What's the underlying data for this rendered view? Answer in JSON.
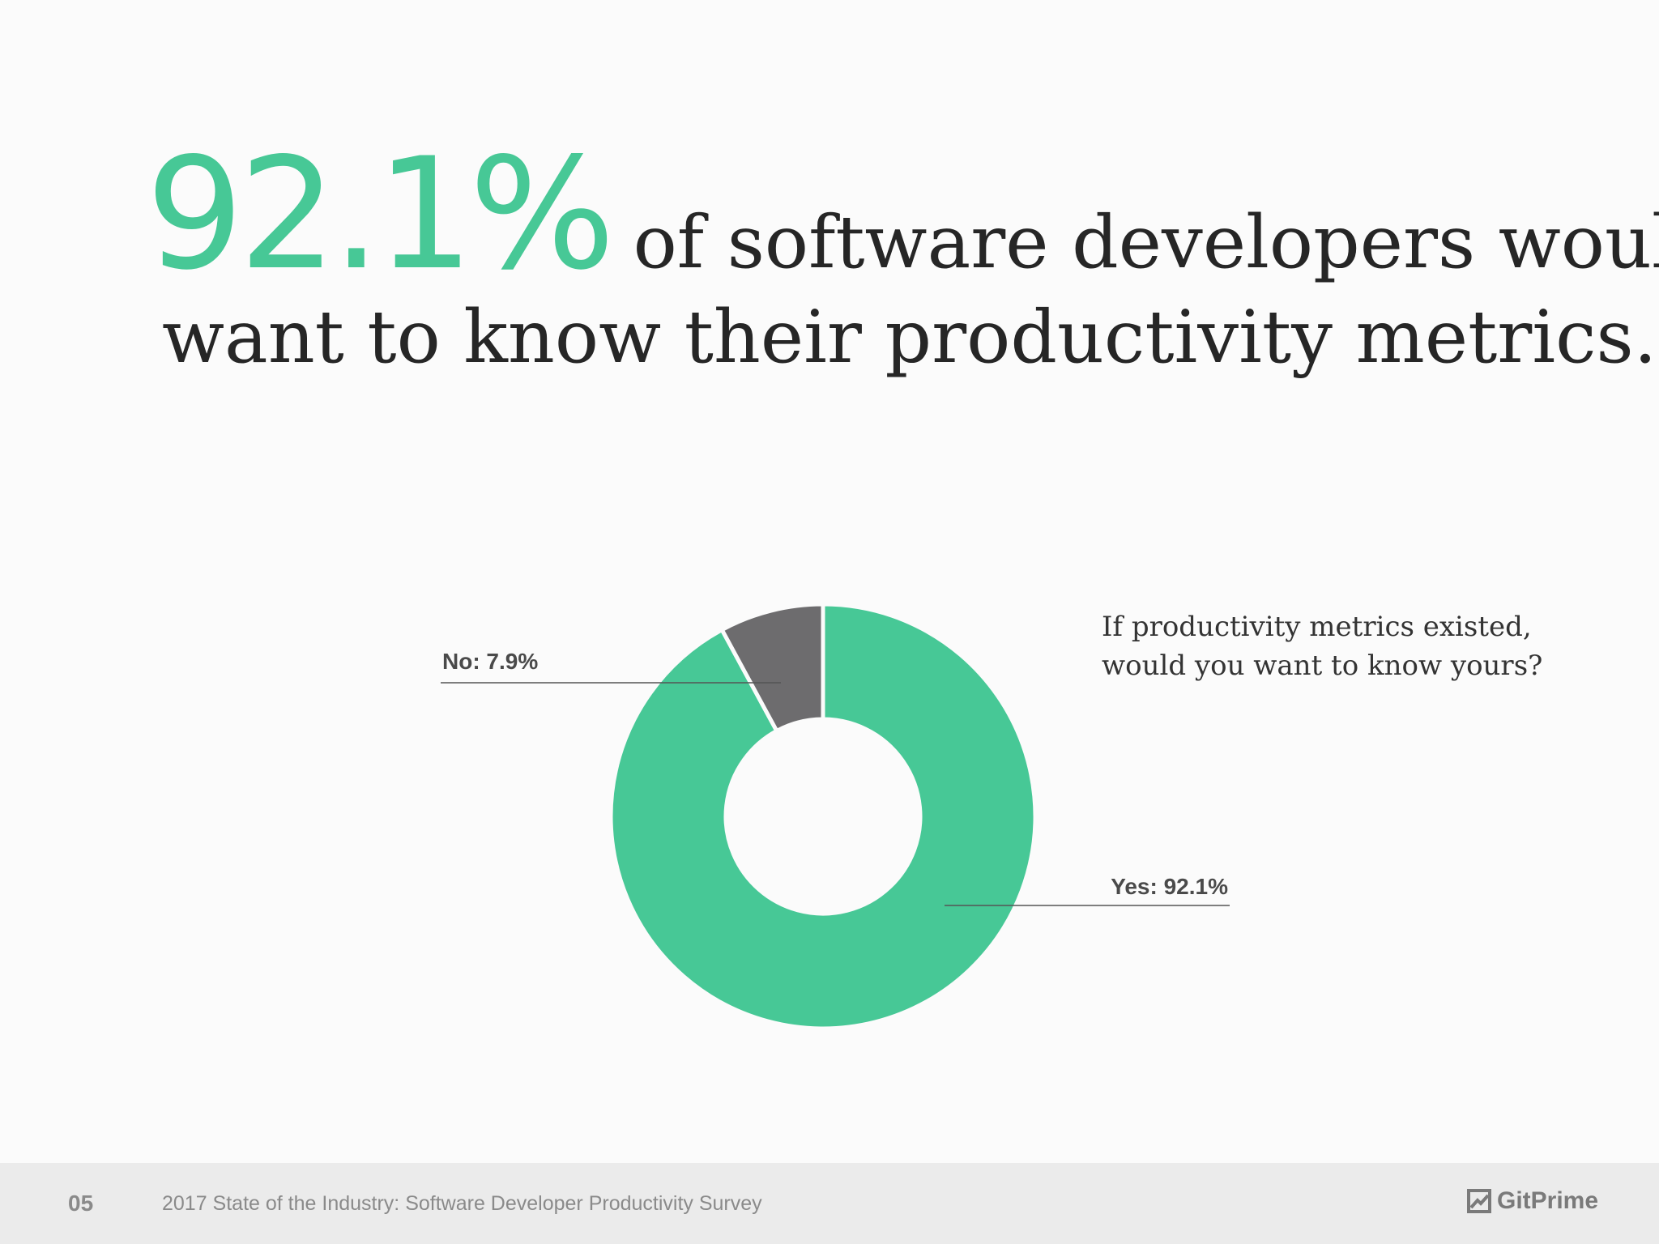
{
  "headline": {
    "stat": "92.1%",
    "text_line1": "of software developers would",
    "text_line2": "want to know their productivity metrics."
  },
  "chart_data": {
    "type": "pie",
    "style": "donut",
    "title": "",
    "question": {
      "line1": "If productivity metrics existed,",
      "line2": "would you want to know yours?"
    },
    "slices": [
      {
        "label": "Yes",
        "value": 92.1,
        "display": "Yes: 92.1%",
        "color": "#47c896"
      },
      {
        "label": "No",
        "value": 7.9,
        "display": "No: 7.9%",
        "color": "#6d6c6e"
      }
    ]
  },
  "footer": {
    "page_number": "05",
    "report_title": "2017 State of the Industry: Software Developer Productivity Survey",
    "brand": "GitPrime"
  },
  "colors": {
    "accent": "#47c896",
    "secondary": "#6d6c6e",
    "text": "#262626",
    "footer_bg": "#ebebeb"
  }
}
